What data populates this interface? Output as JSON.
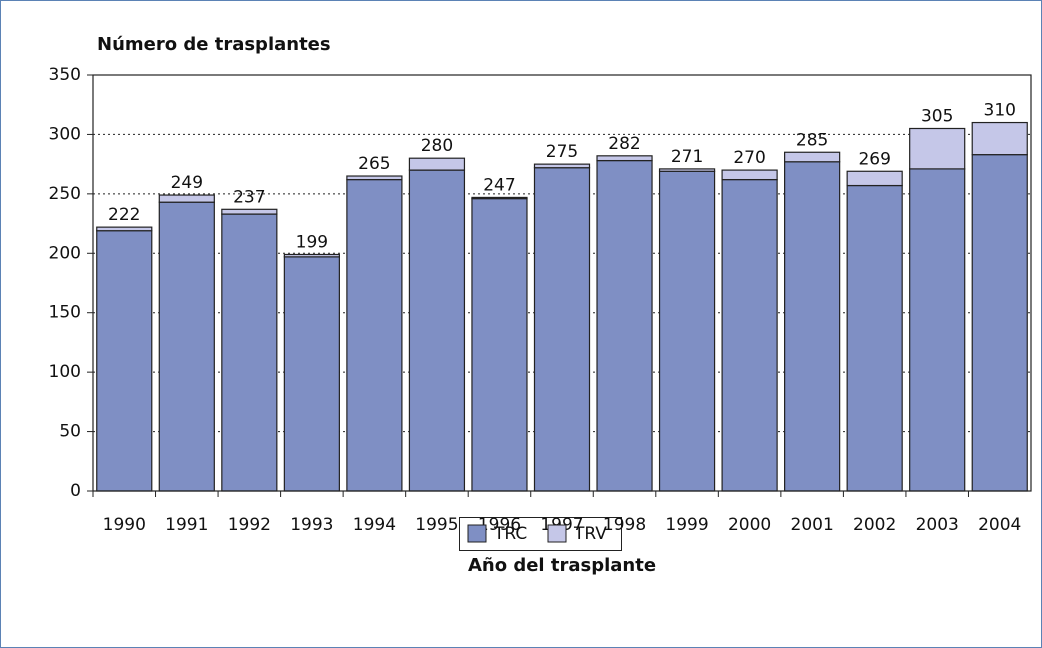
{
  "chart_data": {
    "type": "stacked-bar",
    "y_axis_title": "Número de trasplantes",
    "x_axis_title": "Año del trasplante",
    "categories": [
      "1990",
      "1991",
      "1992",
      "1993",
      "1994",
      "1995",
      "1996",
      "1997",
      "1998",
      "1999",
      "2000",
      "2001",
      "2002",
      "2003",
      "2004"
    ],
    "series": [
      {
        "name": "TRC",
        "color": "#7f8fc4",
        "values": [
          219,
          243,
          233,
          197,
          262,
          270,
          246,
          272,
          278,
          269,
          262,
          277,
          257,
          271,
          283
        ]
      },
      {
        "name": "TRV",
        "color": "#c5c7e8",
        "values": [
          3,
          6,
          4,
          2,
          3,
          10,
          1,
          3,
          4,
          2,
          8,
          8,
          12,
          34,
          27
        ]
      }
    ],
    "totals": [
      222,
      249,
      237,
      199,
      265,
      280,
      247,
      275,
      282,
      271,
      270,
      285,
      269,
      305,
      310
    ],
    "ylim": [
      0,
      350
    ],
    "yticks": [
      0,
      50,
      100,
      150,
      200,
      250,
      300,
      350
    ],
    "grid": true
  }
}
